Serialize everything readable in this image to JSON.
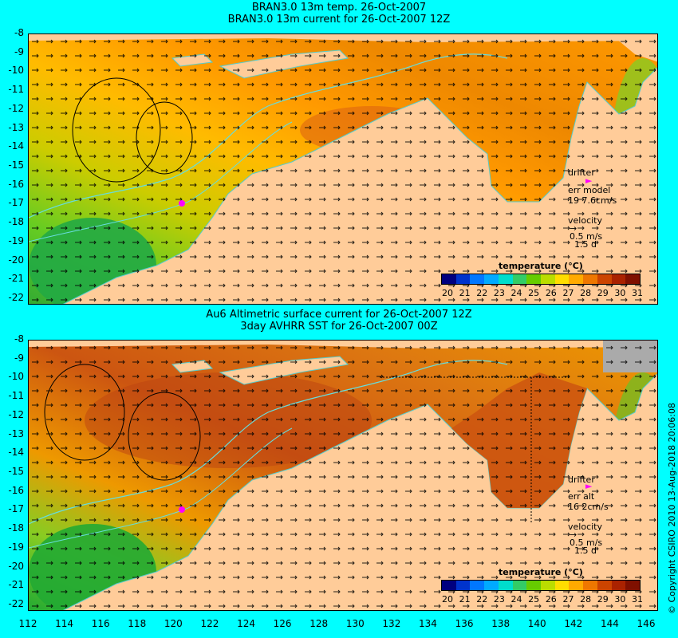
{
  "top_panel": {
    "title_line1": "BRAN3.0 13m temp. 26-Oct-2007",
    "title_line2": "BRAN3.0 13m current for 26-Oct-2007 12Z",
    "drifter_label": "drifter",
    "err_label": "err model",
    "err_value": "19 7.6cm/s",
    "velocity_label": "velocity",
    "velocity_scale": "0.5 m/s",
    "velocity_time": "1.5 d"
  },
  "bottom_panel": {
    "title_line1": "Au6 Altimetric surface current for 26-Oct-2007 12Z",
    "title_line2": "3day AVHRR SST for 26-Oct-2007 00Z",
    "drifter_label": "drifter",
    "err_label": "err alt",
    "err_value": "16 2cm/s",
    "velocity_label": "velocity",
    "velocity_scale": "0.5 m/s",
    "velocity_time": "1.5 d"
  },
  "colorbar": {
    "title": "temperature (°C)",
    "ticks": [
      "20",
      "21",
      "22",
      "23",
      "24",
      "25",
      "26",
      "27",
      "28",
      "29",
      "30",
      "31"
    ],
    "colors": [
      "#00007f",
      "#0033cc",
      "#0077ff",
      "#00aaff",
      "#00ddcc",
      "#33cc66",
      "#66cc00",
      "#bbdd00",
      "#ffdd00",
      "#ffaa00",
      "#ee7700",
      "#cc4400",
      "#aa2200",
      "#7f1000"
    ]
  },
  "y_ticks": [
    "-8",
    "-9",
    "-10",
    "-11",
    "-12",
    "-13",
    "-14",
    "-15",
    "-16",
    "-17",
    "-18",
    "-19",
    "-20",
    "-21",
    "-22"
  ],
  "x_ticks": [
    "112",
    "114",
    "116",
    "118",
    "120",
    "122",
    "124",
    "126",
    "128",
    "130",
    "132",
    "134",
    "136",
    "138",
    "140",
    "142",
    "144",
    "146"
  ],
  "copyright": "© Copyright CSIRO 2010    13-Aug-2018 20:06:08",
  "colors": {
    "background": "#00ffff",
    "land": "#ffcc99",
    "drifter": "#ff00ff",
    "isobath": "#66dddd"
  }
}
